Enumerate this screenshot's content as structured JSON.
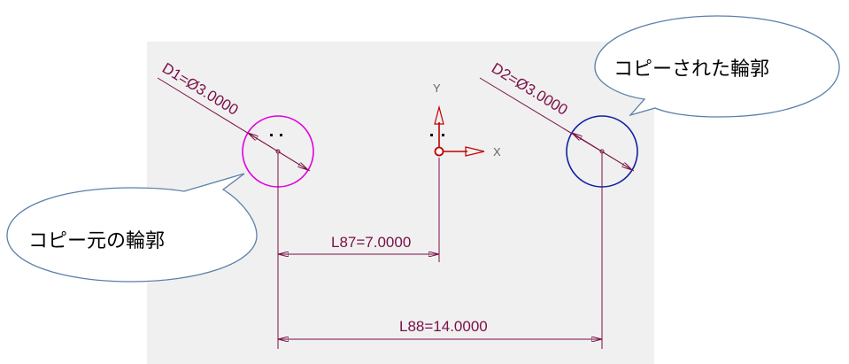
{
  "colors": {
    "canvas_bg": "#f0f0f0",
    "dimension": "#7a1046",
    "original_circle": "#e000e0",
    "copied_circle": "#1020a0",
    "axis": "#c00000",
    "axis_label": "#666666",
    "callout_fill": "#ffffff",
    "callout_stroke": "#5b7fa8"
  },
  "dimensions": {
    "d1_label": "D1=Ø3.0000",
    "d2_label": "D2=Ø3.0000",
    "l87_label": "L87=7.0000",
    "l88_label": "L88=14.0000"
  },
  "axes": {
    "y_label": "Y",
    "x_label": "X"
  },
  "callouts": {
    "original": "コピー元の輪郭",
    "copied": "コピーされた輪郭"
  }
}
